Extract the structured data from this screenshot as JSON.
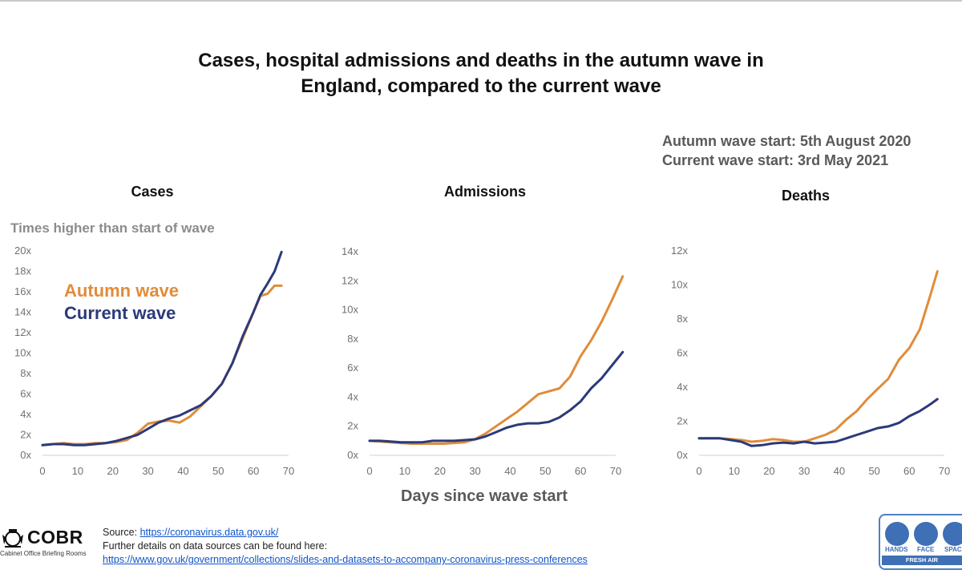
{
  "slide": {
    "title_line1": "Cases, hospital admissions and deaths in the autumn wave in",
    "title_line2": "England, compared to the current wave",
    "autumn_start": "Autumn wave start: 5th August 2020",
    "current_start": "Current wave start: 3rd May 2021",
    "y_axis_label": "Times higher than start of wave",
    "x_axis_label": "Days since wave start",
    "legend_autumn": "Autumn wave",
    "legend_current": "Current wave"
  },
  "colors": {
    "autumn": "#E08C3A",
    "current": "#2B3A7A",
    "axis": "#d0d0d0",
    "tick_text": "#707070"
  },
  "chart_data": [
    {
      "type": "line",
      "title": "Cases",
      "xlabel": "Days since wave start",
      "ylabel": "Times higher than start of wave",
      "xlim": [
        0,
        70
      ],
      "x_ticks": [
        0,
        10,
        20,
        30,
        40,
        50,
        60,
        70
      ],
      "ylim": [
        0,
        20
      ],
      "y_ticks": [
        0,
        2,
        4,
        6,
        8,
        10,
        12,
        14,
        16,
        18,
        20
      ],
      "y_tick_labels": [
        "0x",
        "2x",
        "4x",
        "6x",
        "8x",
        "10x",
        "12x",
        "14x",
        "16x",
        "18x",
        "20x"
      ],
      "series": [
        {
          "name": "Autumn wave",
          "x": [
            0,
            3,
            6,
            9,
            12,
            15,
            18,
            21,
            24,
            27,
            30,
            33,
            36,
            39,
            42,
            45,
            48,
            51,
            54,
            57,
            60,
            62,
            64,
            66,
            68
          ],
          "y": [
            1.0,
            1.1,
            1.2,
            1.1,
            1.1,
            1.2,
            1.2,
            1.3,
            1.5,
            2.2,
            3.1,
            3.3,
            3.4,
            3.2,
            3.8,
            4.8,
            5.8,
            7.0,
            9.0,
            11.5,
            14.0,
            15.6,
            15.8,
            16.6,
            16.6
          ]
        },
        {
          "name": "Current wave",
          "x": [
            0,
            3,
            6,
            9,
            12,
            15,
            18,
            21,
            24,
            27,
            30,
            33,
            36,
            39,
            42,
            45,
            48,
            51,
            54,
            57,
            60,
            62,
            64,
            66,
            68
          ],
          "y": [
            1.0,
            1.1,
            1.1,
            1.0,
            1.0,
            1.1,
            1.2,
            1.4,
            1.7,
            2.0,
            2.6,
            3.2,
            3.6,
            3.9,
            4.4,
            4.9,
            5.8,
            7.0,
            9.0,
            11.7,
            14.0,
            15.7,
            16.8,
            18.0,
            19.9
          ]
        }
      ]
    },
    {
      "type": "line",
      "title": "Admissions",
      "xlabel": "Days since wave start",
      "xlim": [
        0,
        70
      ],
      "x_ticks": [
        0,
        10,
        20,
        30,
        40,
        50,
        60,
        70
      ],
      "ylim": [
        0,
        14
      ],
      "y_ticks": [
        0,
        2,
        4,
        6,
        8,
        10,
        12,
        14
      ],
      "y_tick_labels": [
        "0x",
        "2x",
        "4x",
        "6x",
        "8x",
        "10x",
        "12x",
        "14x"
      ],
      "series": [
        {
          "name": "Autumn wave",
          "x": [
            0,
            3,
            6,
            9,
            12,
            15,
            18,
            21,
            24,
            27,
            30,
            33,
            36,
            39,
            42,
            45,
            48,
            51,
            54,
            57,
            60,
            63,
            66,
            69,
            72
          ],
          "y": [
            1.0,
            0.95,
            0.9,
            0.85,
            0.8,
            0.8,
            0.8,
            0.8,
            0.85,
            0.9,
            1.1,
            1.5,
            2.0,
            2.5,
            3.0,
            3.6,
            4.2,
            4.4,
            4.6,
            5.4,
            6.8,
            7.9,
            9.2,
            10.7,
            12.3
          ]
        },
        {
          "name": "Current wave",
          "x": [
            0,
            3,
            6,
            9,
            12,
            15,
            18,
            21,
            24,
            27,
            30,
            33,
            36,
            39,
            42,
            45,
            48,
            51,
            54,
            57,
            60,
            63,
            66,
            69,
            72
          ],
          "y": [
            1.0,
            1.0,
            0.95,
            0.9,
            0.9,
            0.9,
            1.0,
            1.0,
            1.0,
            1.05,
            1.1,
            1.3,
            1.6,
            1.9,
            2.1,
            2.2,
            2.2,
            2.3,
            2.6,
            3.1,
            3.7,
            4.6,
            5.3,
            6.2,
            7.1
          ]
        }
      ]
    },
    {
      "type": "line",
      "title": "Deaths",
      "xlabel": "Days since wave start",
      "xlim": [
        0,
        70
      ],
      "x_ticks": [
        0,
        10,
        20,
        30,
        40,
        50,
        60,
        70
      ],
      "ylim": [
        0,
        12
      ],
      "y_ticks": [
        0,
        2,
        4,
        6,
        8,
        10,
        12
      ],
      "y_tick_labels": [
        "0x",
        "2x",
        "4x",
        "6x",
        "8x",
        "10x",
        "12x"
      ],
      "series": [
        {
          "name": "Autumn wave",
          "x": [
            0,
            3,
            6,
            9,
            12,
            15,
            18,
            21,
            24,
            27,
            30,
            33,
            36,
            39,
            42,
            45,
            48,
            51,
            54,
            57,
            60,
            63,
            66,
            68
          ],
          "y": [
            1.0,
            1.0,
            1.0,
            0.95,
            0.9,
            0.8,
            0.85,
            0.95,
            0.9,
            0.8,
            0.8,
            1.0,
            1.2,
            1.5,
            2.1,
            2.6,
            3.3,
            3.9,
            4.5,
            5.6,
            6.3,
            7.4,
            9.4,
            10.8
          ]
        },
        {
          "name": "Current wave",
          "x": [
            0,
            3,
            6,
            9,
            12,
            15,
            18,
            21,
            24,
            27,
            30,
            33,
            36,
            39,
            42,
            45,
            48,
            51,
            54,
            57,
            60,
            63,
            66,
            68
          ],
          "y": [
            1.0,
            1.0,
            1.0,
            0.9,
            0.8,
            0.55,
            0.6,
            0.7,
            0.75,
            0.7,
            0.8,
            0.7,
            0.75,
            0.8,
            1.0,
            1.2,
            1.4,
            1.6,
            1.7,
            1.9,
            2.3,
            2.6,
            3.0,
            3.3
          ]
        }
      ]
    }
  ],
  "footer": {
    "source_prefix": "Source: ",
    "source_link": "https://coronavirus.data.gov.uk/",
    "further": "Further details on data sources can be found here:",
    "further_link": "https://www.gov.uk/government/collections/slides-and-datasets-to-accompany-coronavirus-press-conferences"
  },
  "logo": {
    "name": "COBR",
    "subtitle": "Cabinet Office Briefing Rooms"
  },
  "hfs": {
    "hands": "HANDS",
    "face": "FACE",
    "space": "SPACE",
    "fresh_air": "FRESH AIR"
  }
}
